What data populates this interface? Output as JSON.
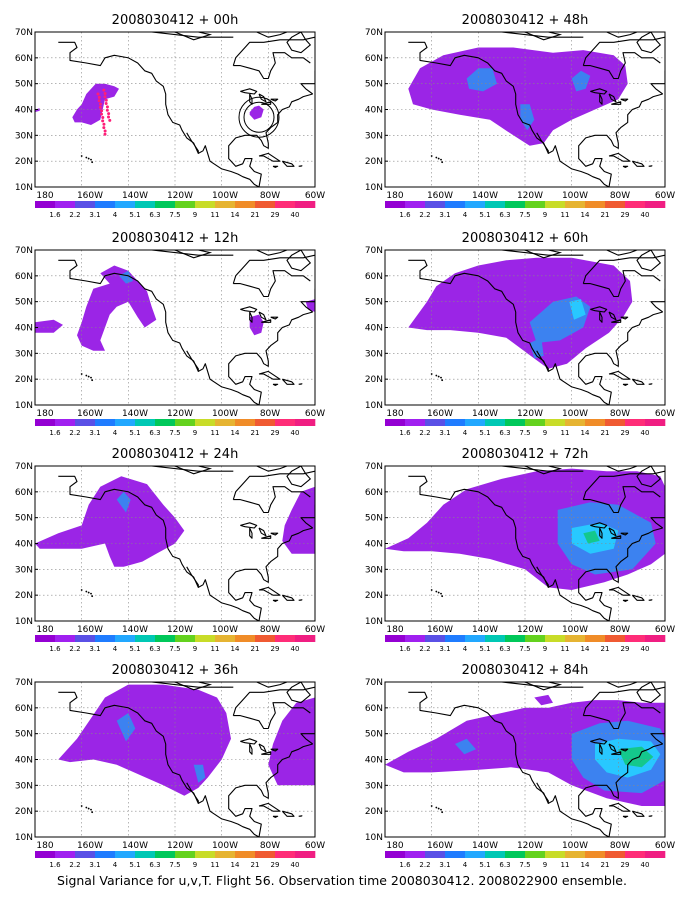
{
  "panels": [
    {
      "title": "2008030412 + 00h"
    },
    {
      "title": "2008030412 + 48h"
    },
    {
      "title": "2008030412 + 12h"
    },
    {
      "title": "2008030412 + 60h"
    },
    {
      "title": "2008030412 + 24h"
    },
    {
      "title": "2008030412 + 72h"
    },
    {
      "title": "2008030412 + 36h"
    },
    {
      "title": "2008030412 + 84h"
    }
  ],
  "lat_labels": [
    "70N",
    "60N",
    "50N",
    "40N",
    "30N",
    "20N",
    "10N"
  ],
  "lon_labels": [
    "180",
    "160W",
    "140W",
    "120W",
    "100W",
    "80W",
    "60W"
  ],
  "colorbar": {
    "labels": [
      "1.6",
      "2.2",
      "3.1",
      "4",
      "5.1",
      "6.3",
      "7.5",
      "9",
      "11",
      "14",
      "21",
      "29",
      "40"
    ],
    "colors": [
      "#9400d3",
      "#a020f0",
      "#5a50e6",
      "#1f7cff",
      "#22a8ff",
      "#00c8b4",
      "#00c85a",
      "#64d21e",
      "#c8dc28",
      "#e6b432",
      "#f08c28",
      "#f05a32",
      "#ff2d78",
      "#f01e82"
    ]
  },
  "shading": {
    "light": "#9b25e6",
    "mid": "#3c82f0",
    "strong": "#28c8ff",
    "deep": "#14c88c"
  },
  "caption": "Signal Variance for u,v,T. Flight 56. Observation time 2008030412. 2008022900 ensemble."
}
